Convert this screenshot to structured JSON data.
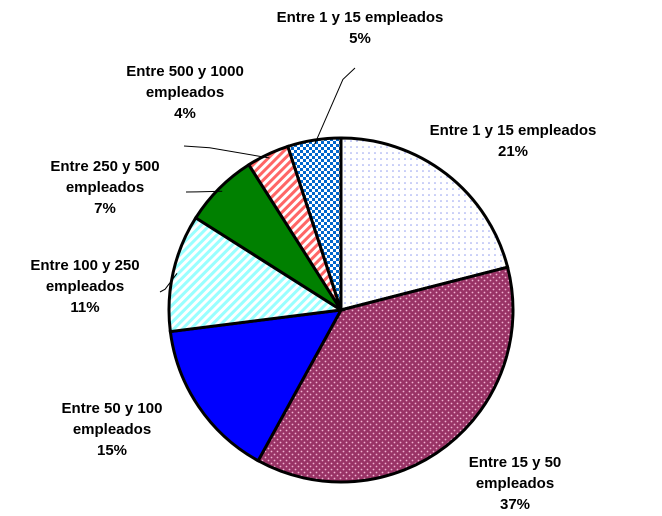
{
  "chart_data": {
    "type": "pie",
    "categories": [
      "Entre 1 y 15 empleados",
      "Entre 15 y 50 empleados",
      "Entre 50 y 100 empleados",
      "Entre 100 y 250 empleados",
      "Entre 250 y 500 empleados",
      "Entre 500 y 1000 empleados",
      "Entre 1 y 15 empleados"
    ],
    "values": [
      21,
      37,
      15,
      11,
      7,
      4,
      5
    ],
    "value_labels": [
      "21%",
      "37%",
      "15%",
      "11%",
      "7%",
      "4%",
      "5%"
    ],
    "colors": [
      "#8f9cf0",
      "#993366",
      "#0000ff",
      "#99ffff",
      "#008000",
      "#ff6666",
      "#0066cc"
    ]
  }
}
